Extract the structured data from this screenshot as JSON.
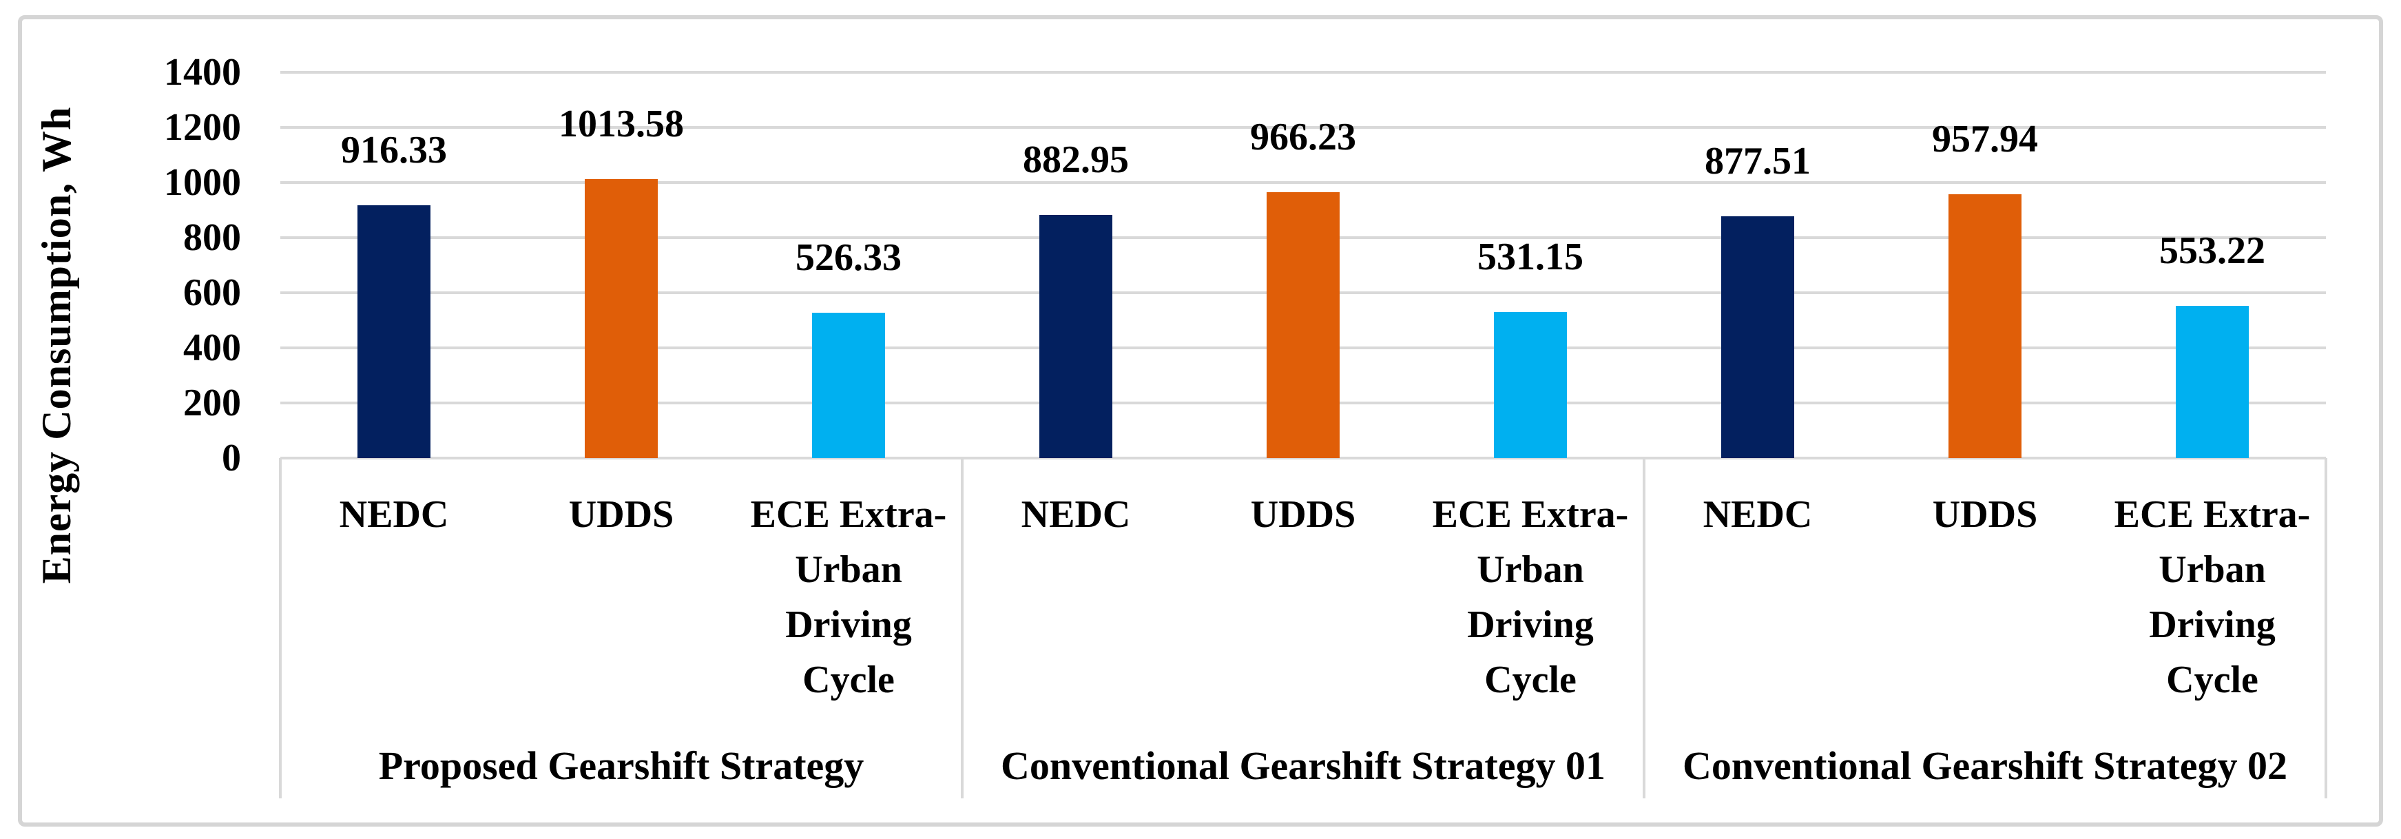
{
  "chart_data": {
    "type": "bar",
    "title": "",
    "xlabel": "",
    "ylabel": "Energy Consumption, Wh",
    "ylim": [
      0,
      1400
    ],
    "yticks": [
      0,
      200,
      400,
      600,
      800,
      1000,
      1200,
      1400
    ],
    "grid": true,
    "legend": "none",
    "value_label_decimals": 2,
    "categories": [
      {
        "label": "NEDC",
        "lines": [
          "NEDC"
        ]
      },
      {
        "label": "UDDS",
        "lines": [
          "UDDS"
        ]
      },
      {
        "label": "ECE Extra-Urban Driving Cycle",
        "lines": [
          "ECE Extra-",
          "Urban",
          "Driving",
          "Cycle"
        ]
      }
    ],
    "groups": [
      {
        "label": "Proposed Gearshift Strategy",
        "values": [
          916.33,
          1013.58,
          526.33
        ]
      },
      {
        "label": "Conventional Gearshift Strategy 01",
        "values": [
          882.95,
          966.23,
          531.15
        ]
      },
      {
        "label": "Conventional Gearshift Strategy 02",
        "values": [
          877.51,
          957.94,
          553.22
        ]
      }
    ],
    "bar_colors": [
      "#03205F",
      "#E05E08",
      "#00B0F0"
    ]
  },
  "style": {
    "background": "#FFFFFF",
    "text_color": "#000000",
    "gridline_color": "#D9D9D9",
    "axis_line_color": "#D9D9D9",
    "frame_border_color": "#D5D5D5"
  }
}
